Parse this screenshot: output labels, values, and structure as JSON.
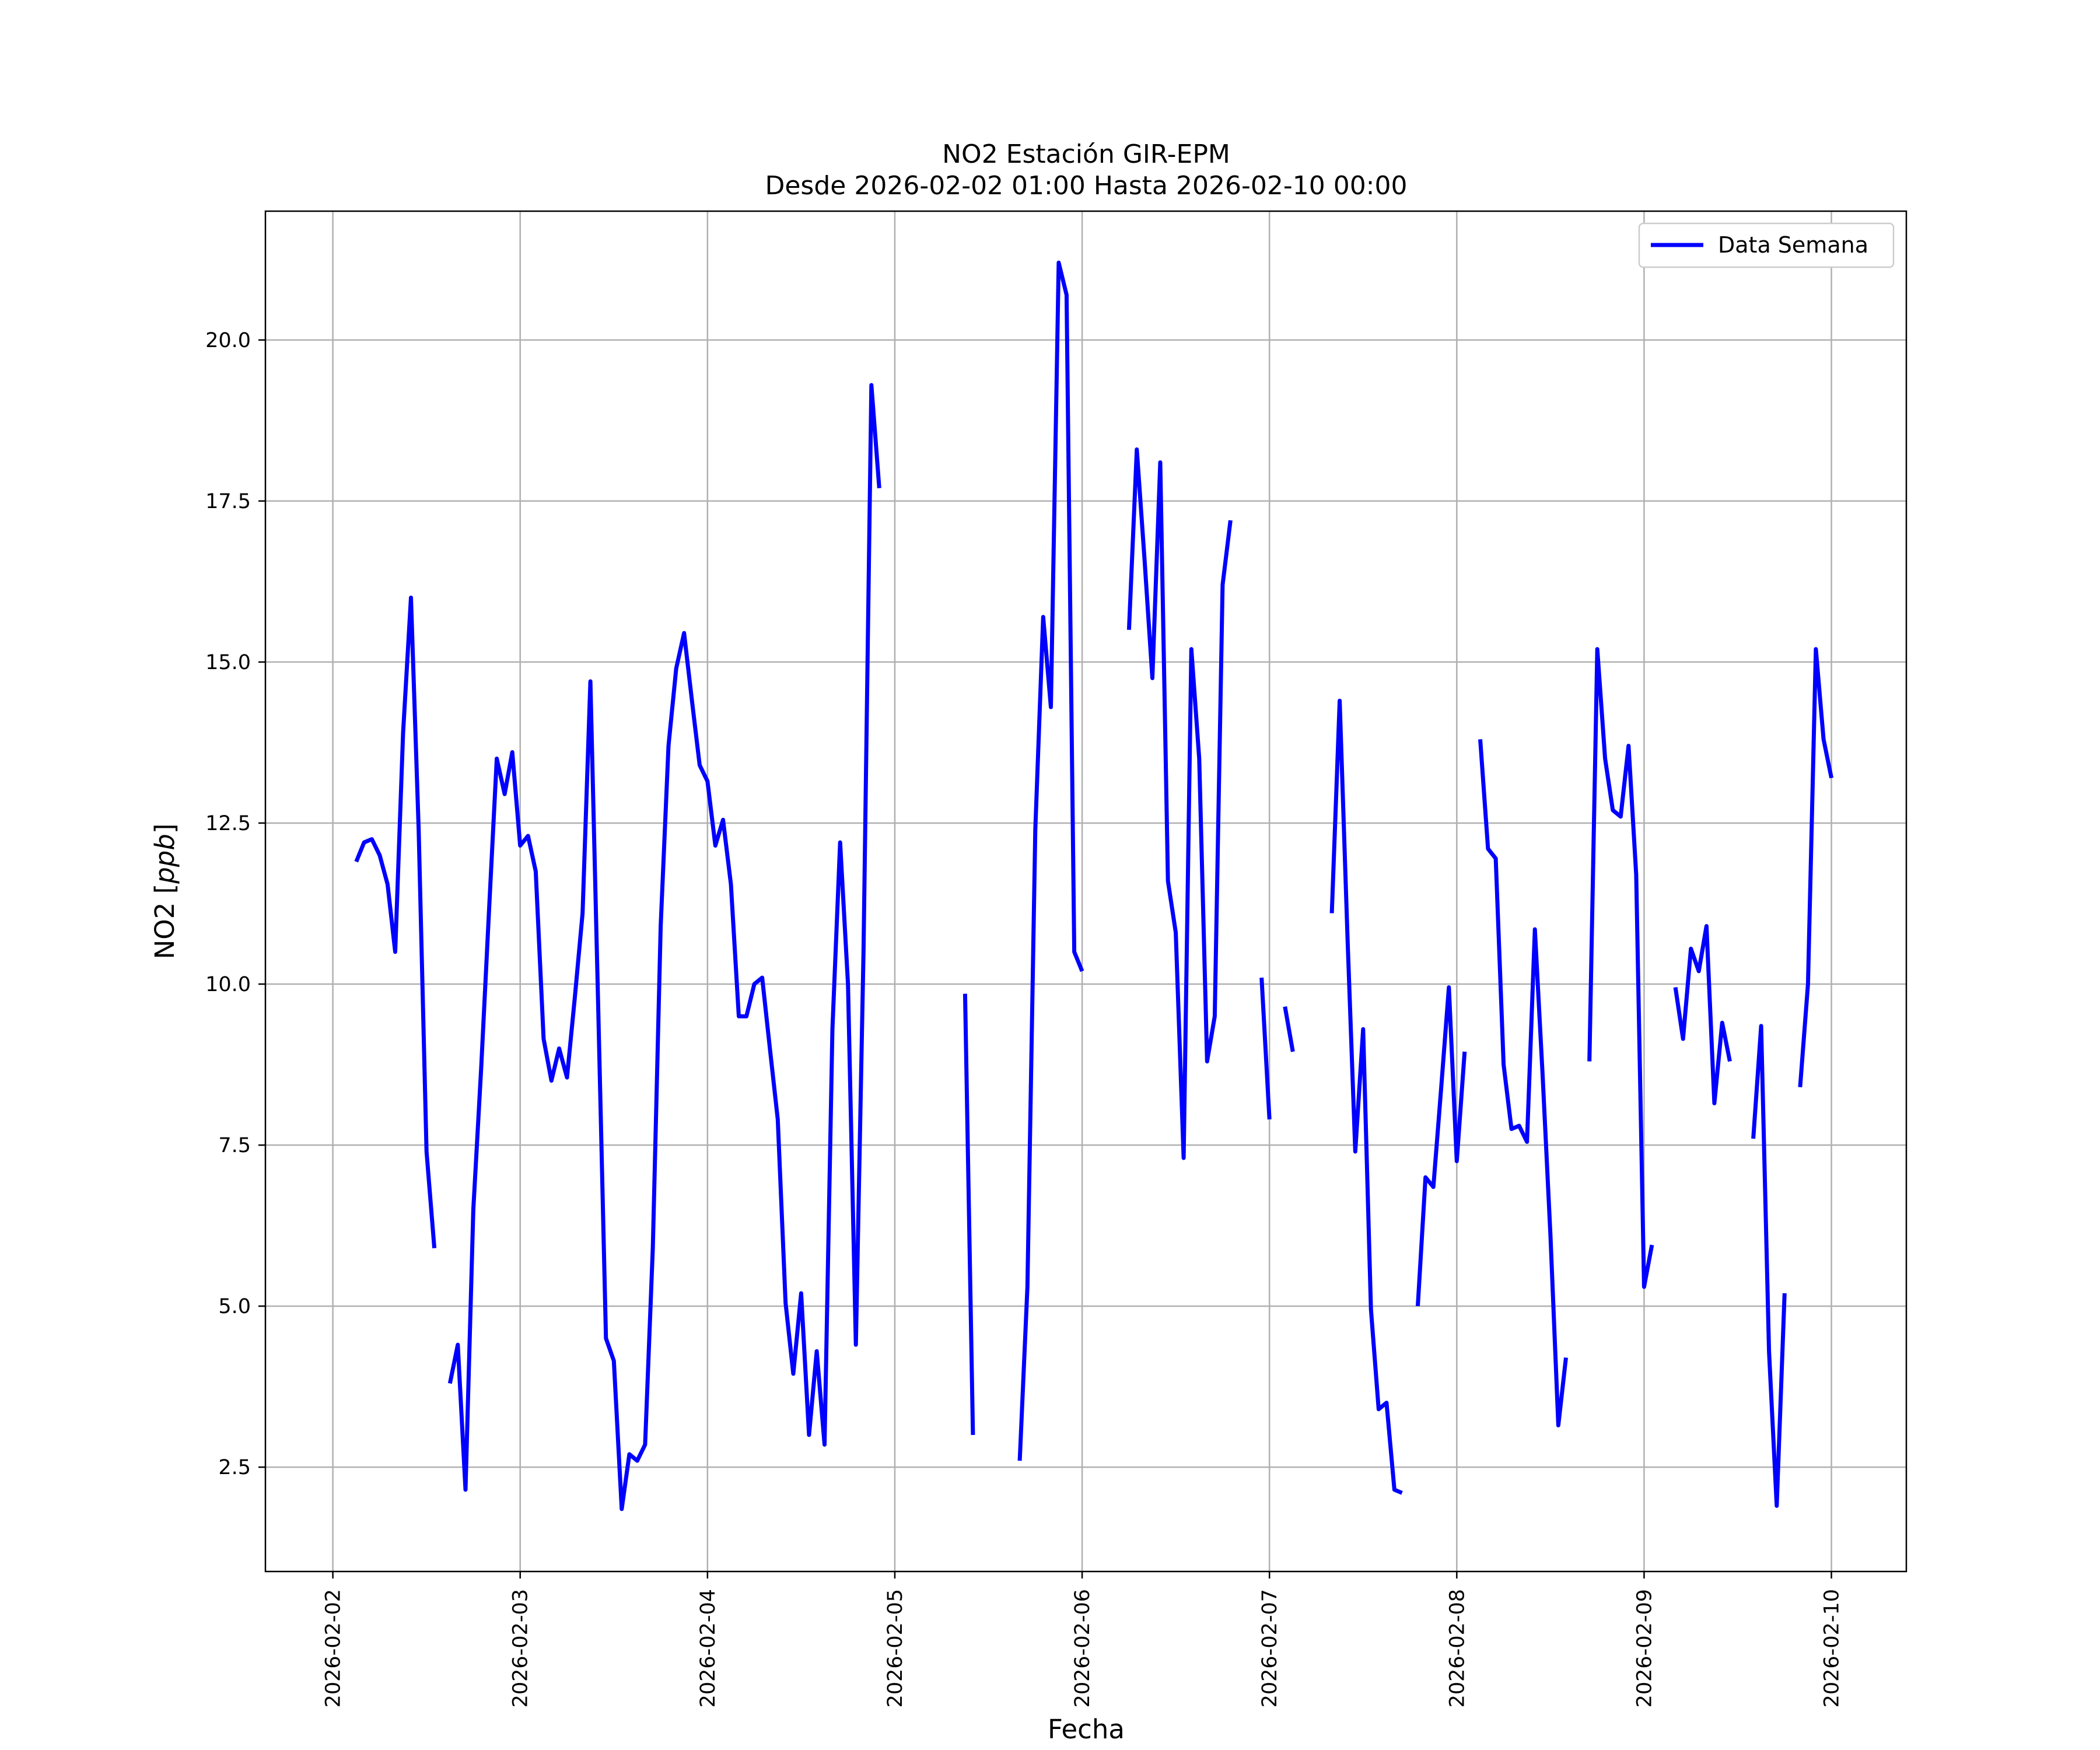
{
  "chart_data": {
    "type": "line",
    "title": "NO2 Estación GIR-EPM",
    "subtitle": "Desde 2026-02-02 01:00 Hasta 2026-02-10 00:00",
    "xlabel": "Fecha",
    "ylabel_main": "NO2 [",
    "ylabel_unit": "ppb",
    "ylabel_close": "]",
    "grid": true,
    "legend": {
      "placement": "top-right",
      "entries": [
        "Data Semana"
      ]
    },
    "colors": {
      "series": "#0000ff",
      "grid": "#b0b0b0",
      "axes": "#000000"
    },
    "x_range_days": [
      -0.36,
      8.4
    ],
    "x_start_date": "2026-02-02",
    "ylim": [
      0.88,
      22.0
    ],
    "x_ticks": [
      {
        "day": 0,
        "label": "2026-02-02"
      },
      {
        "day": 1,
        "label": "2026-02-03"
      },
      {
        "day": 2,
        "label": "2026-02-04"
      },
      {
        "day": 3,
        "label": "2026-02-05"
      },
      {
        "day": 4,
        "label": "2026-02-06"
      },
      {
        "day": 5,
        "label": "2026-02-07"
      },
      {
        "day": 6,
        "label": "2026-02-08"
      },
      {
        "day": 7,
        "label": "2026-02-09"
      },
      {
        "day": 8,
        "label": "2026-02-10"
      }
    ],
    "y_ticks": [
      {
        "value": 2.5,
        "label": "2.5"
      },
      {
        "value": 5.0,
        "label": "5.0"
      },
      {
        "value": 7.5,
        "label": "7.5"
      },
      {
        "value": 10.0,
        "label": "10.0"
      },
      {
        "value": 12.5,
        "label": "12.5"
      },
      {
        "value": 15.0,
        "label": "15.0"
      },
      {
        "value": 17.5,
        "label": "17.5"
      },
      {
        "value": 20.0,
        "label": "20.0"
      }
    ],
    "series": [
      {
        "name": "Data Semana",
        "segments": [
          [
            [
              0.125,
              11.9
            ],
            [
              0.167,
              12.2
            ],
            [
              0.208,
              12.25
            ],
            [
              0.25,
              12.0
            ],
            [
              0.292,
              11.55
            ],
            [
              0.333,
              10.5
            ],
            [
              0.375,
              13.9
            ],
            [
              0.417,
              16.0
            ],
            [
              0.458,
              12.4
            ],
            [
              0.5,
              7.4
            ],
            [
              0.542,
              5.9
            ]
          ],
          [
            [
              0.625,
              3.8
            ],
            [
              0.667,
              4.4
            ],
            [
              0.708,
              2.15
            ],
            [
              0.75,
              6.5
            ],
            [
              0.792,
              8.7
            ],
            [
              0.833,
              11.1
            ],
            [
              0.875,
              13.5
            ],
            [
              0.917,
              12.95
            ],
            [
              0.958,
              13.6
            ],
            [
              1.0,
              12.15
            ],
            [
              1.042,
              12.3
            ],
            [
              1.083,
              11.75
            ],
            [
              1.125,
              9.15
            ],
            [
              1.167,
              8.5
            ],
            [
              1.208,
              9.0
            ],
            [
              1.25,
              8.55
            ],
            [
              1.292,
              9.8
            ],
            [
              1.333,
              11.1
            ],
            [
              1.375,
              14.7
            ],
            [
              1.417,
              9.6
            ],
            [
              1.458,
              4.5
            ],
            [
              1.5,
              4.15
            ],
            [
              1.542,
              1.85
            ],
            [
              1.583,
              2.7
            ],
            [
              1.625,
              2.6
            ],
            [
              1.667,
              2.85
            ],
            [
              1.708,
              5.9
            ],
            [
              1.75,
              10.9
            ],
            [
              1.792,
              13.7
            ],
            [
              1.833,
              14.9
            ],
            [
              1.875,
              15.45
            ],
            [
              1.917,
              14.4
            ],
            [
              1.958,
              13.4
            ],
            [
              2.0,
              13.15
            ],
            [
              2.042,
              12.15
            ],
            [
              2.083,
              12.55
            ],
            [
              2.125,
              11.55
            ],
            [
              2.167,
              9.5
            ],
            [
              2.208,
              9.5
            ],
            [
              2.25,
              10.0
            ],
            [
              2.292,
              10.1
            ],
            [
              2.333,
              9.0
            ],
            [
              2.375,
              7.9
            ],
            [
              2.417,
              5.05
            ],
            [
              2.458,
              3.95
            ],
            [
              2.5,
              5.2
            ],
            [
              2.542,
              3.0
            ],
            [
              2.583,
              4.3
            ],
            [
              2.625,
              2.85
            ],
            [
              2.667,
              9.3
            ],
            [
              2.708,
              12.2
            ],
            [
              2.75,
              10.0
            ],
            [
              2.792,
              4.4
            ],
            [
              2.833,
              10.5
            ],
            [
              2.875,
              19.3
            ],
            [
              2.917,
              17.7
            ]
          ],
          [
            [
              3.375,
              9.85
            ],
            [
              3.417,
              3.0
            ]
          ],
          [
            [
              3.667,
              2.6
            ],
            [
              3.708,
              5.3
            ],
            [
              3.75,
              12.4
            ],
            [
              3.792,
              15.7
            ],
            [
              3.833,
              14.3
            ],
            [
              3.875,
              21.2
            ],
            [
              3.917,
              20.7
            ],
            [
              3.958,
              10.5
            ],
            [
              4.0,
              10.2
            ]
          ],
          [
            [
              4.25,
              15.5
            ],
            [
              4.292,
              18.3
            ],
            [
              4.333,
              16.6
            ],
            [
              4.375,
              14.75
            ],
            [
              4.417,
              18.1
            ],
            [
              4.458,
              11.6
            ],
            [
              4.5,
              10.8
            ],
            [
              4.542,
              7.3
            ],
            [
              4.583,
              15.2
            ],
            [
              4.625,
              13.5
            ],
            [
              4.667,
              8.8
            ],
            [
              4.708,
              9.5
            ],
            [
              4.75,
              16.2
            ],
            [
              4.792,
              17.2
            ]
          ],
          [
            [
              4.958,
              10.1
            ],
            [
              5.0,
              7.9
            ]
          ],
          [
            [
              5.083,
              9.65
            ],
            [
              5.125,
              8.95
            ]
          ],
          [
            [
              5.333,
              11.1
            ],
            [
              5.375,
              14.4
            ],
            [
              5.417,
              10.7
            ],
            [
              5.458,
              7.4
            ],
            [
              5.5,
              9.3
            ],
            [
              5.542,
              4.95
            ],
            [
              5.583,
              3.4
            ],
            [
              5.625,
              3.5
            ],
            [
              5.667,
              2.15
            ],
            [
              5.708,
              2.1
            ]
          ],
          [
            [
              5.792,
              5.0
            ],
            [
              5.833,
              7.0
            ],
            [
              5.875,
              6.85
            ],
            [
              5.917,
              8.4
            ],
            [
              5.958,
              9.95
            ],
            [
              6.0,
              7.25
            ],
            [
              6.042,
              8.95
            ]
          ],
          [
            [
              6.125,
              13.8
            ],
            [
              6.167,
              12.1
            ],
            [
              6.208,
              11.95
            ],
            [
              6.25,
              8.75
            ],
            [
              6.292,
              7.75
            ],
            [
              6.333,
              7.8
            ],
            [
              6.375,
              7.55
            ],
            [
              6.417,
              10.85
            ],
            [
              6.458,
              8.6
            ],
            [
              6.5,
              6.1
            ],
            [
              6.542,
              3.15
            ],
            [
              6.583,
              4.2
            ]
          ],
          [
            [
              6.708,
              8.8
            ],
            [
              6.75,
              15.2
            ],
            [
              6.792,
              13.5
            ],
            [
              6.833,
              12.7
            ],
            [
              6.875,
              12.6
            ],
            [
              6.917,
              13.7
            ],
            [
              6.958,
              11.7
            ],
            [
              7.0,
              5.3
            ],
            [
              7.042,
              5.95
            ]
          ],
          [
            [
              7.167,
              9.95
            ],
            [
              7.208,
              9.15
            ],
            [
              7.25,
              10.55
            ],
            [
              7.292,
              10.2
            ],
            [
              7.333,
              10.9
            ],
            [
              7.375,
              8.15
            ],
            [
              7.417,
              9.4
            ],
            [
              7.458,
              8.8
            ]
          ],
          [
            [
              7.583,
              7.6
            ],
            [
              7.625,
              9.35
            ],
            [
              7.667,
              4.3
            ],
            [
              7.708,
              1.9
            ],
            [
              7.75,
              5.2
            ]
          ],
          [
            [
              7.833,
              8.4
            ],
            [
              7.875,
              10.0
            ],
            [
              7.917,
              15.2
            ],
            [
              7.958,
              13.8
            ],
            [
              8.0,
              13.2
            ]
          ]
        ]
      }
    ]
  }
}
